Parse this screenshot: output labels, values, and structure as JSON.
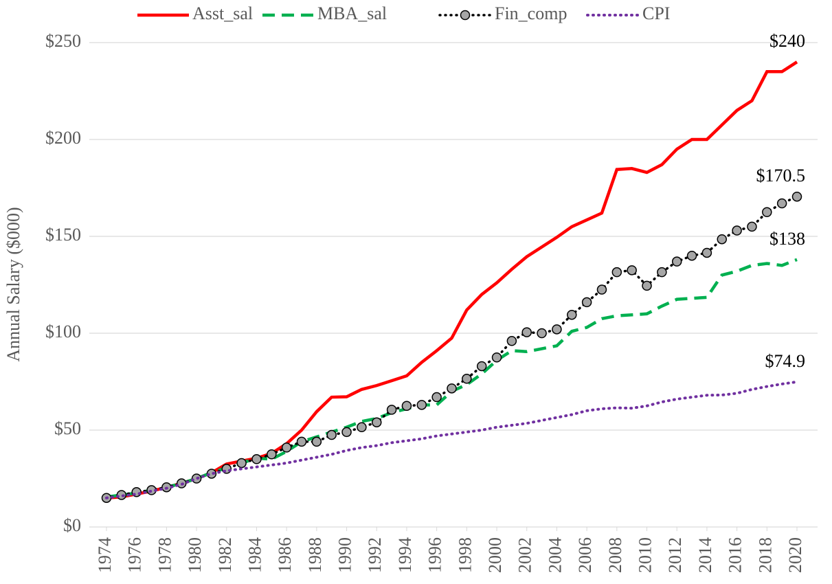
{
  "chart_data": {
    "type": "line",
    "y_label": "Annual Salary ($000)",
    "x": [
      1974,
      1975,
      1976,
      1977,
      1978,
      1979,
      1980,
      1981,
      1982,
      1983,
      1984,
      1985,
      1986,
      1987,
      1988,
      1989,
      1990,
      1991,
      1992,
      1993,
      1994,
      1995,
      1996,
      1997,
      1998,
      1999,
      2000,
      2001,
      2002,
      2003,
      2004,
      2005,
      2006,
      2007,
      2008,
      2009,
      2010,
      2011,
      2012,
      2013,
      2014,
      2015,
      2016,
      2017,
      2018,
      2019,
      2020
    ],
    "xlim": [
      1974,
      2020
    ],
    "xticks": [
      1974,
      1976,
      1978,
      1980,
      1982,
      1984,
      1986,
      1988,
      1990,
      1992,
      1994,
      1996,
      1998,
      2000,
      2002,
      2004,
      2006,
      2008,
      2010,
      2012,
      2014,
      2016,
      2018,
      2020
    ],
    "ylim": [
      0,
      250
    ],
    "yticks": [
      {
        "value": 0,
        "label": "$0"
      },
      {
        "value": 50,
        "label": "$50"
      },
      {
        "value": 100,
        "label": "$100"
      },
      {
        "value": 150,
        "label": "$150"
      },
      {
        "value": 200,
        "label": "$200"
      },
      {
        "value": 250,
        "label": "$250"
      }
    ],
    "grid": true,
    "legend": "top",
    "series": [
      {
        "name": "Asst_sal",
        "color": "#ff0000",
        "style": "solid",
        "values": [
          15,
          15.5,
          17,
          18.5,
          20.5,
          22.5,
          25,
          28,
          32.5,
          34,
          35.5,
          38,
          43,
          50,
          59.5,
          67,
          67.2,
          71,
          73,
          75.5,
          78,
          85,
          91,
          97.5,
          112,
          120,
          126,
          133,
          139.5,
          144.5,
          149.5,
          155,
          158.5,
          162,
          184.5,
          185,
          183,
          187,
          195,
          200,
          200,
          207.5,
          215,
          220,
          235,
          235,
          240
        ],
        "value_labels": [
          null,
          null,
          null,
          null,
          null,
          null,
          null,
          null,
          null,
          null,
          null,
          null,
          null,
          null,
          null,
          null,
          null,
          null,
          null,
          null,
          null,
          null,
          null,
          null,
          null,
          null,
          null,
          null,
          null,
          null,
          null,
          null,
          null,
          null,
          null,
          null,
          null,
          null,
          null,
          null,
          null,
          null,
          null,
          null,
          null,
          null,
          "$240"
        ]
      },
      {
        "name": "MBA_sal",
        "color": "#00b050",
        "style": "dashed",
        "values": [
          15.5,
          16.5,
          17.5,
          19,
          20.5,
          22.5,
          25,
          28,
          30.5,
          33,
          35.5,
          35,
          39,
          44,
          46.5,
          49,
          51.5,
          54.5,
          56,
          59,
          61,
          63,
          63,
          70,
          73.5,
          79,
          86,
          91,
          90.5,
          92,
          93.5,
          101,
          103,
          107.5,
          109,
          109.5,
          110,
          114,
          117.5,
          118,
          118.5,
          130,
          132,
          135,
          136,
          135,
          138
        ],
        "value_labels": [
          null,
          null,
          null,
          null,
          null,
          null,
          null,
          null,
          null,
          null,
          null,
          null,
          null,
          null,
          null,
          null,
          null,
          null,
          null,
          null,
          null,
          null,
          null,
          null,
          null,
          null,
          null,
          null,
          null,
          null,
          null,
          null,
          null,
          null,
          null,
          null,
          null,
          null,
          null,
          null,
          null,
          null,
          null,
          null,
          null,
          null,
          "$138"
        ]
      },
      {
        "name": "Fin_comp",
        "color": "#000000",
        "style": "dotted-marker",
        "values": [
          15,
          16.5,
          18,
          19,
          20.5,
          22.5,
          25,
          27.5,
          30,
          33,
          35,
          37.5,
          41,
          44,
          44,
          47.5,
          49,
          51.5,
          54,
          60.5,
          62.5,
          63,
          67,
          71.5,
          76.5,
          83,
          87.5,
          96,
          100.5,
          100,
          102,
          109.5,
          116,
          122.5,
          131.5,
          132.5,
          124.5,
          131.5,
          137,
          140,
          141.5,
          148.5,
          153,
          155,
          162.5,
          167,
          170.5
        ],
        "value_labels": [
          null,
          null,
          null,
          null,
          null,
          null,
          null,
          null,
          null,
          null,
          null,
          null,
          null,
          null,
          null,
          null,
          null,
          null,
          null,
          null,
          null,
          null,
          null,
          null,
          null,
          null,
          null,
          null,
          null,
          null,
          null,
          null,
          null,
          null,
          null,
          null,
          null,
          null,
          null,
          null,
          null,
          null,
          null,
          null,
          null,
          null,
          "$170.5"
        ]
      },
      {
        "name": "CPI",
        "color": "#7030a0",
        "style": "dotted",
        "values": [
          15,
          16,
          17,
          18.5,
          20,
          22,
          25,
          27.5,
          29,
          30,
          31,
          32,
          33,
          34.5,
          36,
          37.5,
          39.5,
          41,
          42,
          43.5,
          44.5,
          45.5,
          47,
          48,
          49,
          50,
          51.5,
          52.5,
          53.5,
          55,
          56.5,
          58,
          60,
          61,
          61.5,
          61.3,
          62.5,
          64.5,
          66,
          67,
          68,
          68.1,
          69,
          71,
          72.5,
          73.8,
          74.9
        ],
        "value_labels": [
          null,
          null,
          null,
          null,
          null,
          null,
          null,
          null,
          null,
          null,
          null,
          null,
          null,
          null,
          null,
          null,
          null,
          null,
          null,
          null,
          null,
          null,
          null,
          null,
          null,
          null,
          null,
          null,
          null,
          null,
          null,
          null,
          null,
          null,
          null,
          null,
          null,
          null,
          null,
          null,
          null,
          null,
          null,
          null,
          null,
          null,
          "$74.9"
        ]
      }
    ]
  }
}
